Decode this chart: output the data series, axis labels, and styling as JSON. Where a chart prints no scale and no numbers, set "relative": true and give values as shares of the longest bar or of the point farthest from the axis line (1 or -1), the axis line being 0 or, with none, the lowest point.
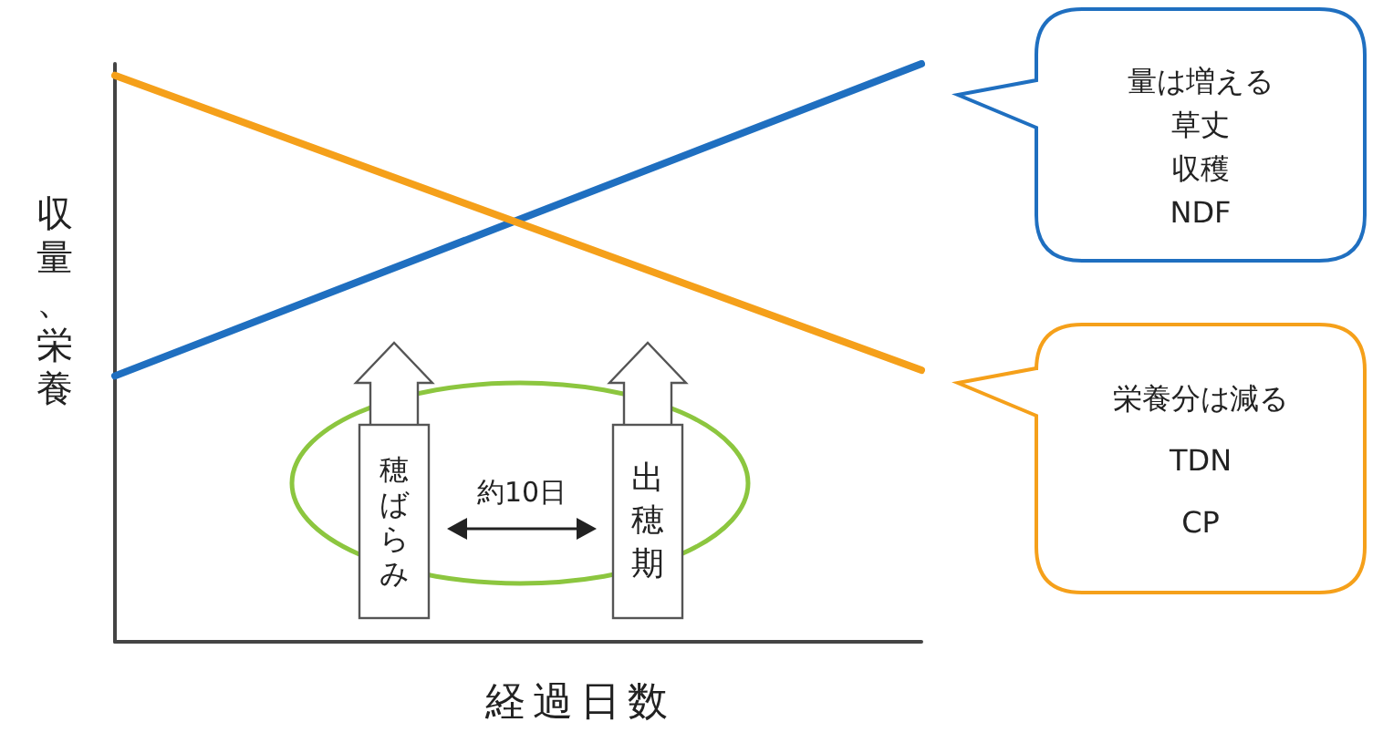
{
  "chart_data": {
    "type": "line",
    "relative": true,
    "xlabel": "経過日数",
    "ylabel": "収量、栄養",
    "categories": [
      null,
      null
    ],
    "series": [
      {
        "color": "#1f6fc0",
        "values": [
          0.46,
          1.0
        ]
      },
      {
        "color": "#f5a01a",
        "values": [
          0.98,
          0.47
        ]
      }
    ],
    "annotations": [
      "量は増える",
      "草丈",
      "収穫",
      "NDF",
      "栄養分は減る",
      "TDN",
      "CP",
      "穂ばらみ",
      "出穂期",
      "約10日"
    ],
    "grid": false,
    "marker": "none",
    "line_style": "solid"
  }
}
